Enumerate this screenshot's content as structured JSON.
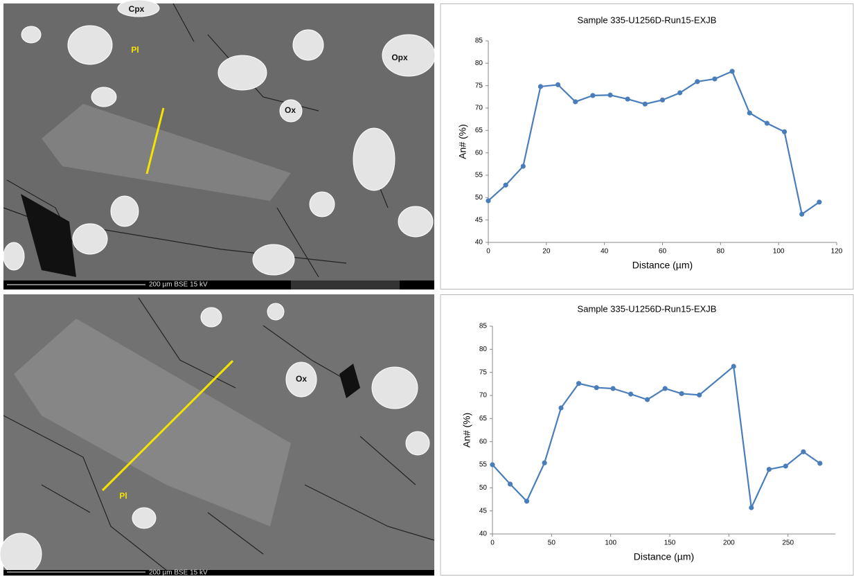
{
  "chart_data": [
    {
      "type": "line",
      "title": "Sample 335-U1256D-Run15-EXJB",
      "x_label": "Distance (µm)",
      "y_label": "An# (%)",
      "x": [
        0,
        6,
        12,
        18,
        24,
        30,
        36,
        42,
        48,
        54,
        60,
        66,
        72,
        78,
        84,
        90,
        96,
        102,
        108,
        114
      ],
      "series": [
        {
          "color": "#4a7ebb",
          "values": [
            49.3,
            52.8,
            57,
            74.8,
            75.2,
            71.4,
            72.8,
            72.9,
            72,
            70.9,
            71.8,
            73.4,
            75.9,
            76.5,
            78.2,
            68.9,
            66.6,
            64.7,
            46.3,
            49
          ]
        }
      ],
      "xlim": [
        0,
        120
      ],
      "xticks": [
        0,
        20,
        40,
        60,
        80,
        100,
        120
      ],
      "ylim": [
        40,
        85
      ],
      "yticks": [
        40,
        45,
        50,
        55,
        60,
        65,
        70,
        75,
        80,
        85
      ]
    },
    {
      "type": "line",
      "title": "Sample 335-U1256D-Run15-EXJB",
      "x_label": "Distance (µm)",
      "y_label": "An# (%)",
      "x": [
        0,
        15,
        29,
        44,
        58,
        73,
        88,
        102,
        117,
        131,
        146,
        160,
        175,
        204,
        219,
        234,
        248,
        263,
        277
      ],
      "series": [
        {
          "color": "#4a7ebb",
          "values": [
            55,
            50.8,
            47.1,
            55.4,
            67.3,
            72.6,
            71.7,
            71.5,
            70.3,
            69.1,
            71.5,
            70.4,
            70.1,
            76.3,
            45.7,
            54,
            54.7,
            57.8,
            55.3
          ]
        }
      ],
      "xlim": [
        0,
        290
      ],
      "xticks": [
        0,
        50,
        100,
        150,
        200,
        250
      ],
      "ylim": [
        40,
        85
      ],
      "yticks": [
        40,
        45,
        50,
        55,
        60,
        65,
        70,
        75,
        80,
        85
      ]
    }
  ],
  "images": [
    {
      "labels": [
        "Cpx",
        "Pl",
        "Opx",
        "Ox"
      ],
      "scale": "200 µm BSE 15 kV"
    },
    {
      "labels": [
        "Ox",
        "Pl"
      ],
      "scale": "200 µm BSE 15 kV"
    }
  ]
}
